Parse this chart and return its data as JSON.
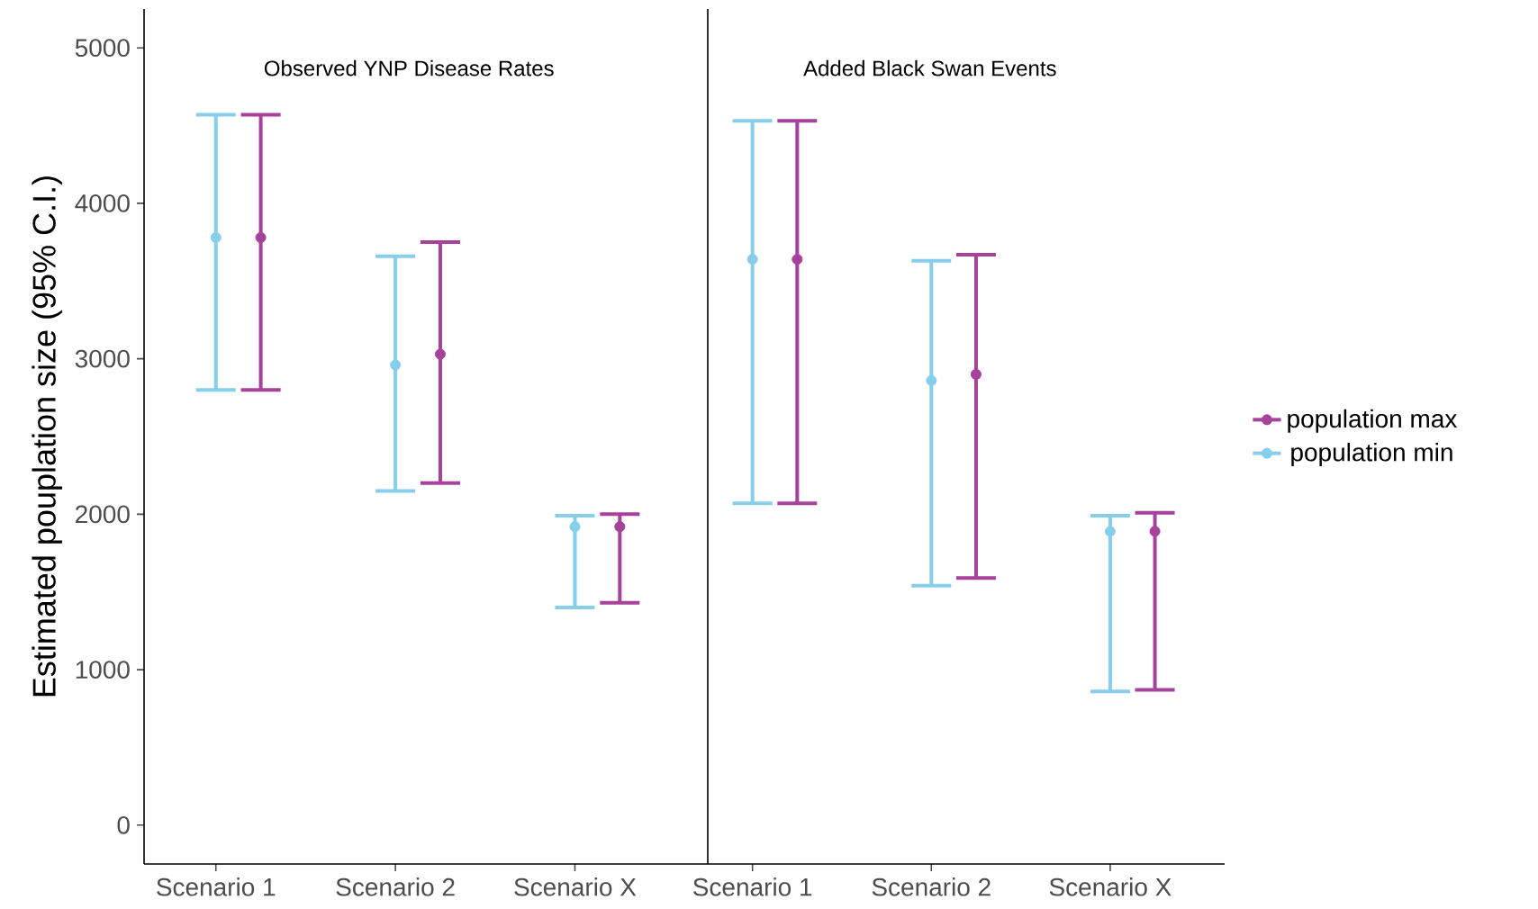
{
  "chart_data": [
    {
      "type": "scatter",
      "title": "Observed YNP Disease Rates",
      "ylabel": "Estimated pouplation size (95% C.I.)",
      "categories": [
        "Scenario 1",
        "Scenario 2",
        "Scenario X"
      ],
      "marker": "circle",
      "ylim": [
        -250,
        5250
      ],
      "yticks": [
        0,
        1000,
        2000,
        3000,
        4000,
        5000
      ],
      "series": [
        {
          "color": "#a6429a",
          "values": [
            3780,
            3030,
            1920
          ],
          "errors": [
            [
              2800,
              4570
            ],
            [
              2200,
              3750
            ],
            [
              1430,
              2000
            ]
          ]
        },
        {
          "color": "#87ceeb",
          "values": [
            3780,
            2960,
            1920
          ],
          "errors": [
            [
              2800,
              4570
            ],
            [
              2150,
              3660
            ],
            [
              1400,
              1990
            ]
          ]
        }
      ]
    },
    {
      "type": "scatter",
      "title": "Added Black Swan Events",
      "categories": [
        "Scenario 1",
        "Scenario 2",
        "Scenario X"
      ],
      "marker": "circle",
      "ylim": [
        -250,
        5250
      ],
      "yticks": [
        0,
        1000,
        2000,
        3000,
        4000,
        5000
      ],
      "tick_labels": "x",
      "legend": "right",
      "series": [
        {
          "name": "population max",
          "color": "#a6429a",
          "values": [
            3640,
            2900,
            1890
          ],
          "errors": [
            [
              2070,
              4530
            ],
            [
              1590,
              3670
            ],
            [
              870,
              2010
            ]
          ]
        },
        {
          "name": "population min",
          "color": "#87ceeb",
          "values": [
            3640,
            2860,
            1890
          ],
          "errors": [
            [
              2070,
              4530
            ],
            [
              1540,
              3630
            ],
            [
              860,
              1990
            ]
          ]
        }
      ]
    }
  ]
}
